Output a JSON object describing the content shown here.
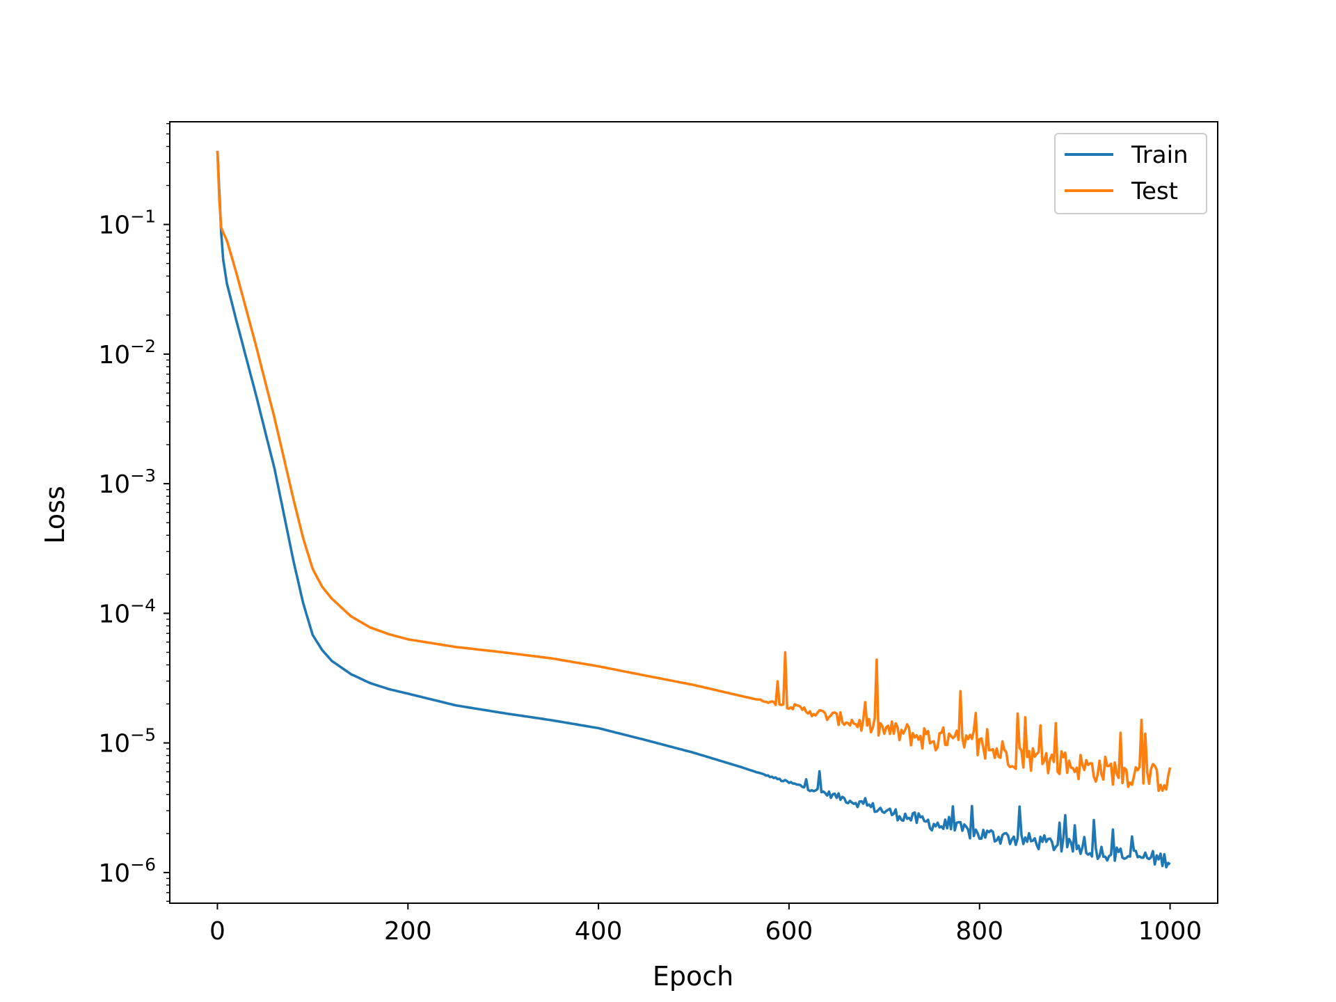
{
  "chart_data": {
    "type": "line",
    "xlabel": "Epoch",
    "ylabel": "Loss",
    "xlim": [
      -50,
      1050
    ],
    "ylim": [
      5.8e-07,
      0.62
    ],
    "yscale": "log",
    "xticks": [
      0,
      200,
      400,
      600,
      800,
      1000
    ],
    "yticks": [
      {
        "value": 0.1,
        "base": "10",
        "exp": "−1"
      },
      {
        "value": 0.01,
        "base": "10",
        "exp": "−2"
      },
      {
        "value": 0.001,
        "base": "10",
        "exp": "−3"
      },
      {
        "value": 0.0001,
        "base": "10",
        "exp": "−4"
      },
      {
        "value": 1e-05,
        "base": "10",
        "exp": "−5"
      },
      {
        "value": 1e-06,
        "base": "10",
        "exp": "−6"
      }
    ],
    "grid": false,
    "legend_position": "top-right",
    "series": [
      {
        "name": "Train",
        "color": "#1f77b4",
        "noise_start": 560,
        "noise_scale": 0.12,
        "x": [
          0,
          5,
          10,
          20,
          40,
          60,
          80,
          90,
          100,
          110,
          120,
          140,
          160,
          180,
          200,
          250,
          300,
          350,
          400,
          450,
          500,
          550,
          600,
          650,
          700,
          750,
          800,
          850,
          900,
          950,
          1000
        ],
        "y": [
          0.37,
          0.06,
          0.035,
          0.018,
          0.005,
          0.0013,
          0.00025,
          0.00012,
          6.8e-05,
          5.2e-05,
          4.3e-05,
          3.4e-05,
          2.9e-05,
          2.6e-05,
          2.4e-05,
          1.95e-05,
          1.7e-05,
          1.5e-05,
          1.3e-05,
          1.05e-05,
          8.4e-06,
          6.5e-06,
          4.9e-06,
          3.8e-06,
          2.9e-06,
          2.3e-06,
          1.9e-06,
          1.7e-06,
          1.5e-06,
          1.3e-06,
          1.2e-06
        ]
      },
      {
        "name": "Test",
        "color": "#ff7f0e",
        "noise_start": 560,
        "noise_scale": 0.22,
        "x": [
          0,
          3,
          5,
          10,
          20,
          40,
          60,
          80,
          90,
          100,
          110,
          120,
          140,
          160,
          180,
          200,
          250,
          300,
          350,
          400,
          450,
          500,
          550,
          600,
          650,
          700,
          750,
          800,
          850,
          900,
          950,
          1000
        ],
        "y": [
          0.37,
          0.1,
          0.09,
          0.075,
          0.042,
          0.012,
          0.0032,
          0.00075,
          0.00038,
          0.00022,
          0.00016,
          0.00013,
          9.5e-05,
          7.8e-05,
          6.9e-05,
          6.3e-05,
          5.5e-05,
          5e-05,
          4.5e-05,
          3.9e-05,
          3.3e-05,
          2.8e-05,
          2.3e-05,
          1.9e-05,
          1.5e-05,
          1.2e-05,
          1e-05,
          8.5e-06,
          7.2e-06,
          6.2e-06,
          5.5e-06,
          4.8e-06
        ]
      }
    ]
  }
}
